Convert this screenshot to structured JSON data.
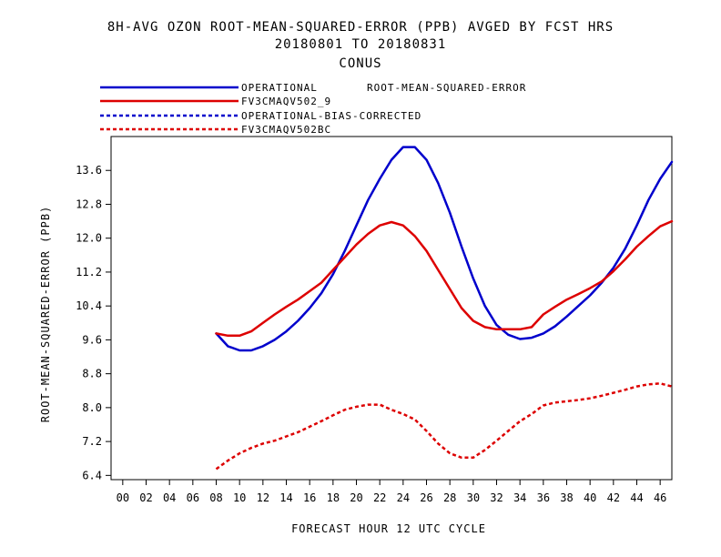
{
  "title": {
    "line1": "8H-AVG OZON ROOT-MEAN-SQUARED-ERROR (PPB)  AVGED BY FCST HRS",
    "line2": "20180801 TO 20180831",
    "line3": "CONUS"
  },
  "legend": {
    "header": "ROOT-MEAN-SQUARED-ERROR",
    "items": [
      {
        "label": "OPERATIONAL",
        "color": "#0000cc",
        "style": "solid"
      },
      {
        "label": "FV3CMAQV502_9",
        "color": "#dd0000",
        "style": "solid"
      },
      {
        "label": "OPERATIONAL-BIAS-CORRECTED",
        "color": "#0000cc",
        "style": "dashed"
      },
      {
        "label": "FV3CMAQV502BC",
        "color": "#dd0000",
        "style": "dashed"
      }
    ]
  },
  "chart_data": {
    "type": "line",
    "xlabel": "FORECAST HOUR  12 UTC CYCLE",
    "ylabel": "ROOT-MEAN-SQUARED-ERROR (PPB)",
    "xlim": [
      -1,
      47
    ],
    "ylim": [
      6.3,
      14.4
    ],
    "x_ticks": [
      0,
      2,
      4,
      6,
      8,
      10,
      12,
      14,
      16,
      18,
      20,
      22,
      24,
      26,
      28,
      30,
      32,
      34,
      36,
      38,
      40,
      42,
      44,
      46
    ],
    "x_tick_labels": [
      "00",
      "02",
      "04",
      "06",
      "08",
      "10",
      "12",
      "14",
      "16",
      "18",
      "20",
      "22",
      "24",
      "26",
      "28",
      "30",
      "32",
      "34",
      "36",
      "38",
      "40",
      "42",
      "44",
      "46"
    ],
    "y_ticks": [
      6.4,
      7.2,
      8.0,
      8.8,
      9.6,
      10.4,
      11.2,
      12.0,
      12.8,
      13.6
    ],
    "y_tick_labels": [
      "6.4",
      "7.2",
      "8.0",
      "8.8",
      "9.6",
      "10.4",
      "11.2",
      "12.0",
      "12.8",
      "13.6"
    ],
    "grid": false,
    "series": [
      {
        "name": "OPERATIONAL",
        "color": "#0000cc",
        "style": "solid",
        "x": [
          8,
          9,
          10,
          11,
          12,
          13,
          14,
          15,
          16,
          17,
          18,
          19,
          20,
          21,
          22,
          23,
          24,
          25,
          26,
          27,
          28,
          29,
          30,
          31,
          32,
          33,
          34,
          35,
          36,
          37,
          38,
          39,
          40,
          41,
          42,
          43,
          44,
          45,
          46,
          47
        ],
        "values": [
          9.75,
          9.45,
          9.35,
          9.35,
          9.45,
          9.6,
          9.8,
          10.05,
          10.35,
          10.7,
          11.15,
          11.7,
          12.3,
          12.9,
          13.4,
          13.85,
          14.15,
          14.15,
          13.85,
          13.3,
          12.6,
          11.8,
          11.05,
          10.4,
          9.95,
          9.72,
          9.62,
          9.65,
          9.75,
          9.92,
          10.15,
          10.4,
          10.65,
          10.95,
          11.3,
          11.75,
          12.3,
          12.9,
          13.4,
          13.8
        ]
      },
      {
        "name": "FV3CMAQV502_9",
        "color": "#dd0000",
        "style": "solid",
        "x": [
          8,
          9,
          10,
          11,
          12,
          13,
          14,
          15,
          16,
          17,
          18,
          19,
          20,
          21,
          22,
          23,
          24,
          25,
          26,
          27,
          28,
          29,
          30,
          31,
          32,
          33,
          34,
          35,
          36,
          37,
          38,
          39,
          40,
          41,
          42,
          43,
          44,
          45,
          46,
          47
        ],
        "values": [
          9.75,
          9.7,
          9.7,
          9.8,
          10.0,
          10.2,
          10.38,
          10.55,
          10.75,
          10.95,
          11.25,
          11.55,
          11.85,
          12.1,
          12.3,
          12.38,
          12.3,
          12.05,
          11.7,
          11.25,
          10.8,
          10.35,
          10.05,
          9.9,
          9.85,
          9.85,
          9.85,
          9.9,
          10.2,
          10.38,
          10.55,
          10.68,
          10.82,
          10.98,
          11.22,
          11.5,
          11.8,
          12.05,
          12.28,
          12.4
        ]
      },
      {
        "name": "OPERATIONAL-BIAS-CORRECTED",
        "color": "#0000cc",
        "style": "dashed",
        "x": [],
        "values": []
      },
      {
        "name": "FV3CMAQV502BC",
        "color": "#dd0000",
        "style": "dashed",
        "x": [
          8,
          9,
          10,
          11,
          12,
          13,
          14,
          15,
          16,
          17,
          18,
          19,
          20,
          21,
          22,
          23,
          24,
          25,
          26,
          27,
          28,
          29,
          30,
          31,
          32,
          33,
          34,
          35,
          36,
          37,
          38,
          39,
          40,
          41,
          42,
          43,
          44,
          45,
          46,
          47
        ],
        "values": [
          6.55,
          6.75,
          6.92,
          7.05,
          7.15,
          7.22,
          7.32,
          7.42,
          7.55,
          7.68,
          7.82,
          7.95,
          8.02,
          8.07,
          8.07,
          7.95,
          7.85,
          7.72,
          7.45,
          7.15,
          6.92,
          6.82,
          6.82,
          7.0,
          7.22,
          7.45,
          7.68,
          7.85,
          8.05,
          8.12,
          8.15,
          8.18,
          8.22,
          8.28,
          8.35,
          8.42,
          8.5,
          8.55,
          8.57,
          8.5
        ]
      }
    ]
  }
}
